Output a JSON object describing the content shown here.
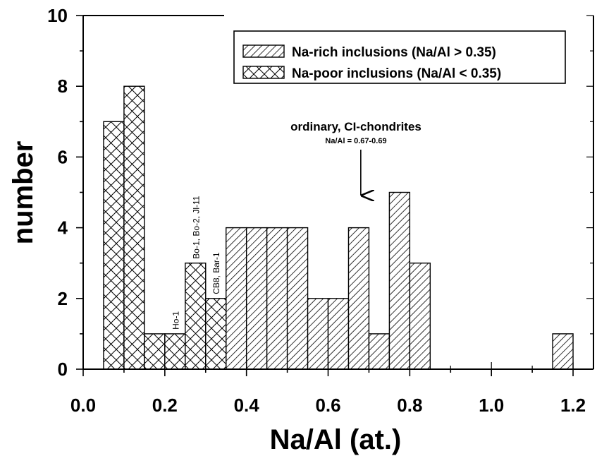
{
  "chart_data": {
    "type": "bar",
    "xlabel": "Na/Al (at.)",
    "ylabel": "number",
    "xlim": [
      0.0,
      1.25
    ],
    "ylim": [
      0,
      10
    ],
    "x_ticks": [
      "0.0",
      "0.2",
      "0.4",
      "0.6",
      "0.8",
      "1.0",
      "1.2"
    ],
    "y_ticks": [
      "0",
      "2",
      "4",
      "6",
      "8",
      "10"
    ],
    "bin_width": 0.05,
    "series": [
      {
        "name": "Na-rich inclusions (Na/Al > 0.35)",
        "pattern": "diagonal-hatch",
        "bins": [
          {
            "x0": 0.35,
            "count": 4
          },
          {
            "x0": 0.4,
            "count": 4
          },
          {
            "x0": 0.45,
            "count": 4
          },
          {
            "x0": 0.5,
            "count": 4
          },
          {
            "x0": 0.55,
            "count": 2
          },
          {
            "x0": 0.6,
            "count": 2
          },
          {
            "x0": 0.65,
            "count": 4
          },
          {
            "x0": 0.7,
            "count": 1
          },
          {
            "x0": 0.75,
            "count": 5
          },
          {
            "x0": 0.8,
            "count": 3
          },
          {
            "x0": 1.15,
            "count": 1
          }
        ]
      },
      {
        "name": "Na-poor inclusions (Na/Al < 0.35)",
        "pattern": "cross-hatch",
        "bins": [
          {
            "x0": 0.05,
            "count": 7
          },
          {
            "x0": 0.1,
            "count": 8
          },
          {
            "x0": 0.15,
            "count": 1
          },
          {
            "x0": 0.2,
            "count": 1
          },
          {
            "x0": 0.25,
            "count": 3
          },
          {
            "x0": 0.3,
            "count": 2
          }
        ]
      }
    ],
    "bar_labels": [
      {
        "text": "Ho-1",
        "bin_x0": 0.2
      },
      {
        "text": "Bo-1, Bo-2, Jl-11",
        "bin_x0": 0.25
      },
      {
        "text": "CB8, Bar-1",
        "bin_x0": 0.3
      }
    ],
    "annotation": {
      "title": "ordinary, CI-chondrites",
      "subtitle": "Na/Al = 0.67-0.69",
      "arrow_x": 0.68
    },
    "legend_position": "top-right",
    "grid": false
  }
}
